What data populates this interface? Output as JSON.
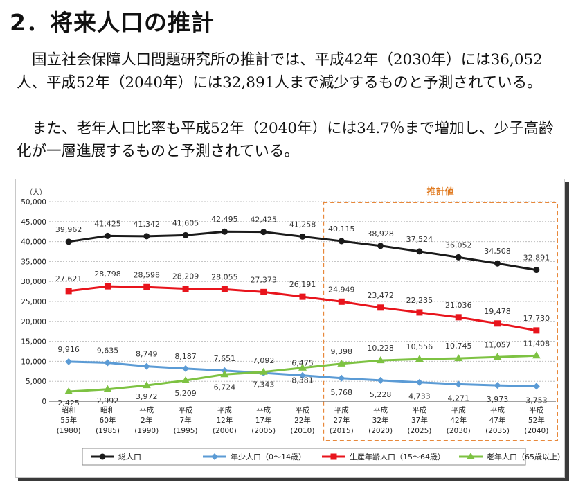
{
  "heading": "2．将来人口の推計",
  "paragraphs": [
    "国立社会保障人口問題研究所の推計では、平成42年（2030年）には36,052人、平成52年（2040年）には32,891人まで減少するものと予測されている。",
    "また、老年人口比率も平成52年（2040年）には34.7％まで増加し、少子高齢化が一層進展するものと予測されている。"
  ],
  "chart_data": {
    "type": "line",
    "y_unit": "（人）",
    "ylim": [
      0,
      50000
    ],
    "yticks": [
      "0",
      "5,000",
      "10,000",
      "15,000",
      "20,000",
      "25,000",
      "30,000",
      "35,000",
      "40,000",
      "45,000",
      "50,000"
    ],
    "categories": [
      [
        "昭和",
        "55年",
        "(1980)"
      ],
      [
        "昭和",
        "60年",
        "(1985)"
      ],
      [
        "平成",
        "2年",
        "(1990)"
      ],
      [
        "平成",
        "7年",
        "(1995)"
      ],
      [
        "平成",
        "12年",
        "(2000)"
      ],
      [
        "平成",
        "17年",
        "(2005)"
      ],
      [
        "平成",
        "22年",
        "(2010)"
      ],
      [
        "平成",
        "27年",
        "(2015)"
      ],
      [
        "平成",
        "32年",
        "(2020)"
      ],
      [
        "平成",
        "37年",
        "(2025)"
      ],
      [
        "平成",
        "42年",
        "(2030)"
      ],
      [
        "平成",
        "47年",
        "(2035)"
      ],
      [
        "平成",
        "52年",
        "(2040)"
      ]
    ],
    "projection_label": "推計値",
    "projection_start_index": 7,
    "grid": true,
    "legend_position": "bottom",
    "series": [
      {
        "name": "総人口",
        "color": "#1a1a1a",
        "marker": "circle",
        "values": [
          39962,
          41425,
          41342,
          41605,
          42495,
          42425,
          41258,
          40115,
          38928,
          37524,
          36052,
          34508,
          32891
        ],
        "labels": [
          "39,962",
          "41,425",
          "41,342",
          "41,605",
          "42,495",
          "42,425",
          "41,258",
          "40,115",
          "38,928",
          "37,524",
          "36,052",
          "34,508",
          "32,891"
        ]
      },
      {
        "name": "年少人口（0～14歳）",
        "color": "#5b9bd5",
        "marker": "diamond",
        "values": [
          9916,
          9635,
          8749,
          8187,
          7651,
          7092,
          6475,
          5768,
          5228,
          4733,
          4271,
          3973,
          3753
        ],
        "labels": [
          "9,916",
          "9,635",
          "8,749",
          "8,187",
          "7,651",
          "7,092",
          "6,475",
          "5,768",
          "5,228",
          "4,733",
          "4,271",
          "3,973",
          "3,753"
        ]
      },
      {
        "name": "生産年齢人口（15～64歳）",
        "color": "#e8141c",
        "marker": "square",
        "values": [
          27621,
          28798,
          28598,
          28209,
          28055,
          27373,
          26191,
          24949,
          23472,
          22235,
          21036,
          19478,
          17730
        ],
        "labels": [
          "27,621",
          "28,798",
          "28,598",
          "28,209",
          "28,055",
          "27,373",
          "26,191",
          "24,949",
          "23,472",
          "22,235",
          "21,036",
          "19,478",
          "17,730"
        ]
      },
      {
        "name": "老年人口（65歳以上）",
        "color": "#7dc242",
        "marker": "triangle",
        "values": [
          2425,
          2992,
          3972,
          5209,
          6724,
          7343,
          8381,
          9398,
          10228,
          10556,
          10745,
          11057,
          11408
        ],
        "labels": [
          "2,425",
          "2,992",
          "3,972",
          "5,209",
          "6,724",
          "7,343",
          "8,381",
          "9,398",
          "10,228",
          "10,556",
          "10,745",
          "11,057",
          "11,408"
        ]
      }
    ]
  }
}
